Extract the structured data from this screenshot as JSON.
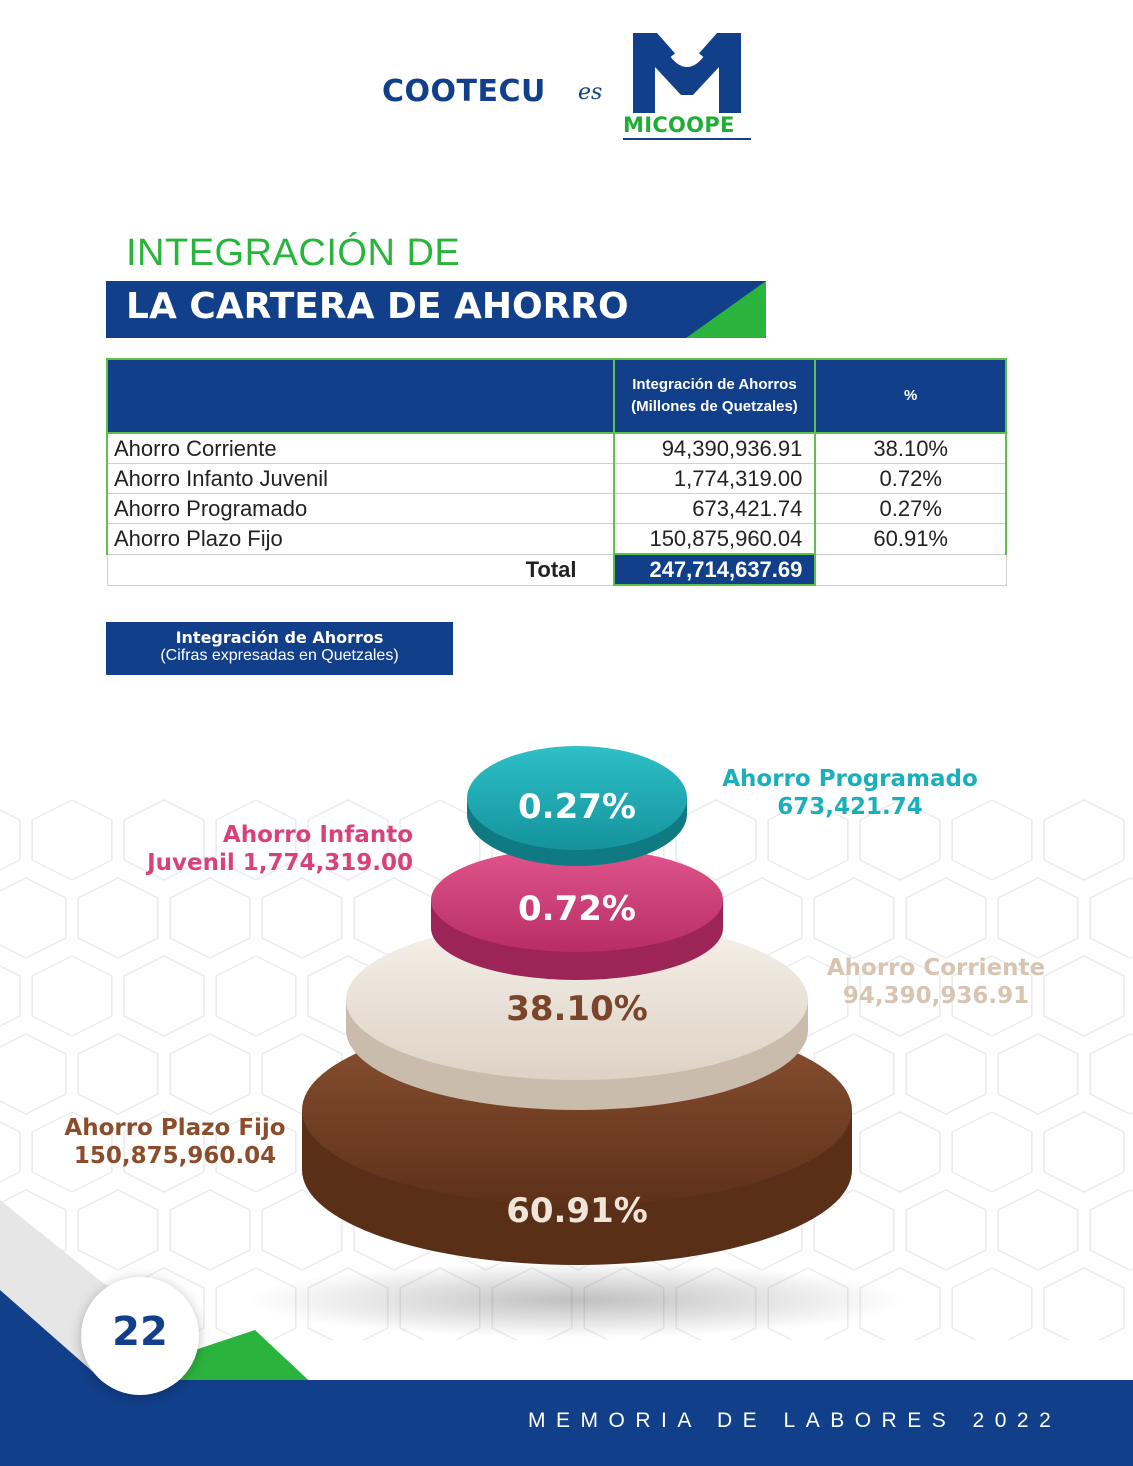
{
  "header": {
    "brand": "COOTECU",
    "connector": "es",
    "logo_text_mi": "MI",
    "logo_text_coope": "COOPE"
  },
  "title": {
    "line1": "INTEGRACIÓN DE",
    "line2": "LA CARTERA DE AHORRO"
  },
  "table": {
    "headers": [
      "",
      "Integración de Ahorros (Millones de Quetzales)",
      "%"
    ],
    "rows": [
      {
        "name": "Ahorro Corriente",
        "value": "94,390,936.91",
        "pct": "38.10%"
      },
      {
        "name": "Ahorro Infanto Juvenil",
        "value": "1,774,319.00",
        "pct": "0.72%"
      },
      {
        "name": "Ahorro Programado",
        "value": "673,421.74",
        "pct": "0.27%"
      },
      {
        "name": "Ahorro Plazo Fijo",
        "value": "150,875,960.04",
        "pct": "60.91%"
      }
    ],
    "total_label": "Total",
    "total_value": "247,714,637.69"
  },
  "chart_box": {
    "title": "Integración de Ahorros",
    "subtitle": "(Cifras expresadas en Quetzales)"
  },
  "chart_data": {
    "type": "pie",
    "title": "Integración de Ahorros",
    "subtitle": "(Cifras expresadas en Quetzales)",
    "series": [
      {
        "name": "Ahorro Plazo Fijo",
        "value": 150875960.04,
        "percent": 60.91,
        "label": "Ahorro Plazo Fijo",
        "value_label": "150,875,960.04",
        "percent_label": "60.91%",
        "color": "#7a452a"
      },
      {
        "name": "Ahorro Corriente",
        "value": 94390936.91,
        "percent": 38.1,
        "label": "Ahorro Corriente",
        "value_label": "94,390,936.91",
        "percent_label": "38.10%",
        "color": "#ece4da"
      },
      {
        "name": "Ahorro Infanto Juvenil",
        "value": 1774319.0,
        "percent": 0.72,
        "label": "Ahorro Infanto",
        "label2": "Juvenil 1,774,319.00",
        "percent_label": "0.72%",
        "color": "#d8417c"
      },
      {
        "name": "Ahorro Programado",
        "value": 673421.74,
        "percent": 0.27,
        "label": "Ahorro Programado",
        "value_label": "673,421.74",
        "percent_label": "0.27%",
        "color": "#1fb3bd"
      }
    ]
  },
  "colors": {
    "brand_blue": "#123f8a",
    "brand_green": "#27b53a"
  },
  "footer": {
    "page_number": "22",
    "text": "MEMORIA DE LABORES 2022"
  }
}
